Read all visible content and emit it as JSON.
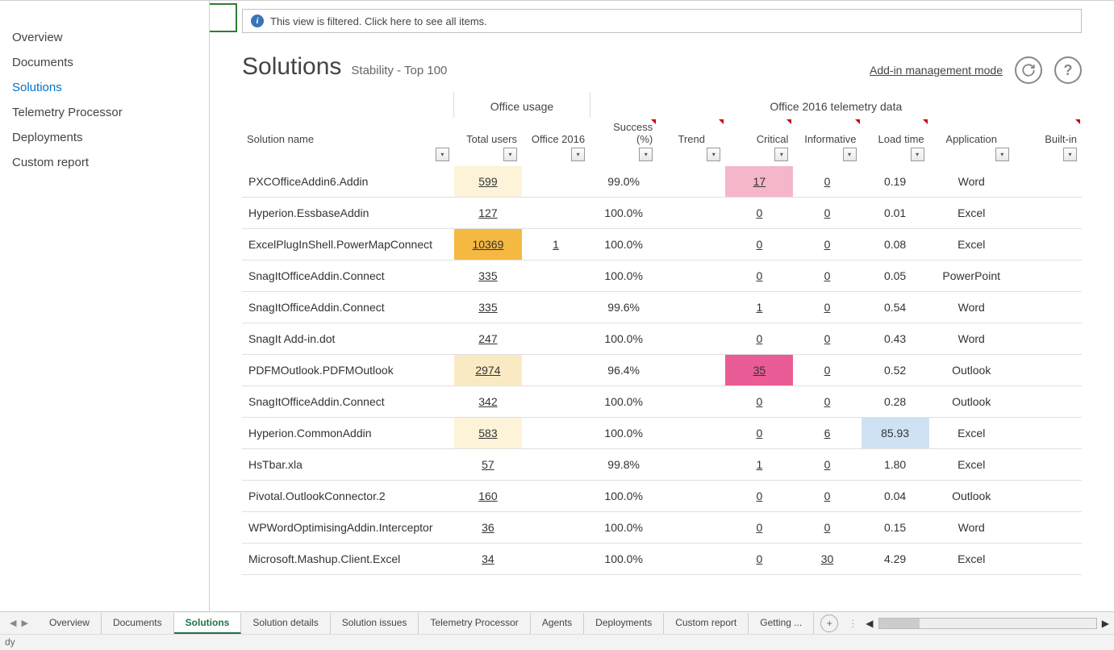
{
  "sidebar": {
    "items": [
      {
        "label": "Overview",
        "active": false
      },
      {
        "label": "Documents",
        "active": false
      },
      {
        "label": "Solutions",
        "active": true
      },
      {
        "label": "Telemetry Processor",
        "active": false
      },
      {
        "label": "Deployments",
        "active": false
      },
      {
        "label": "Custom report",
        "active": false
      }
    ]
  },
  "filter_notice": "This view is filtered. Click here to see all items.",
  "page": {
    "title": "Solutions",
    "subtitle": "Stability - Top 100",
    "mode_link": "Add-in management mode"
  },
  "table": {
    "group_headers": [
      "",
      "Office usage",
      "Office 2016 telemetry data"
    ],
    "columns": [
      {
        "label": "Solution name",
        "align": "left",
        "red": false
      },
      {
        "label": "Total users",
        "align": "right",
        "red": false
      },
      {
        "label": "Office 2016",
        "align": "right",
        "red": false
      },
      {
        "label": "Success (%)",
        "align": "right",
        "red": true
      },
      {
        "label": "Trend",
        "align": "center",
        "red": true
      },
      {
        "label": "Critical",
        "align": "right",
        "red": true
      },
      {
        "label": "Informative",
        "align": "right",
        "red": true
      },
      {
        "label": "Load time",
        "align": "right",
        "red": true
      },
      {
        "label": "Application",
        "align": "center",
        "red": false
      },
      {
        "label": "Built-in",
        "align": "right",
        "red": true
      }
    ],
    "rows": [
      {
        "name": "PXCOfficeAddin6.Addin",
        "total": "599",
        "total_hl": "hl-yellow-light",
        "o2016": "",
        "success": "99.0%",
        "trend": "",
        "critical": "17",
        "critical_hl": "hl-pink-light",
        "info": "0",
        "load": "0.19",
        "load_hl": "",
        "app": "Word"
      },
      {
        "name": "Hyperion.EssbaseAddin",
        "total": "127",
        "total_hl": "",
        "o2016": "",
        "success": "100.0%",
        "trend": "",
        "critical": "0",
        "critical_hl": "",
        "info": "0",
        "load": "0.01",
        "load_hl": "",
        "app": "Excel"
      },
      {
        "name": "ExcelPlugInShell.PowerMapConnect",
        "total": "10369",
        "total_hl": "hl-orange",
        "o2016": "1",
        "success": "100.0%",
        "trend": "",
        "critical": "0",
        "critical_hl": "",
        "info": "0",
        "load": "0.08",
        "load_hl": "",
        "app": "Excel"
      },
      {
        "name": "SnagItOfficeAddin.Connect",
        "total": "335",
        "total_hl": "",
        "o2016": "",
        "success": "100.0%",
        "trend": "",
        "critical": "0",
        "critical_hl": "",
        "info": "0",
        "load": "0.05",
        "load_hl": "",
        "app": "PowerPoint"
      },
      {
        "name": "SnagItOfficeAddin.Connect",
        "total": "335",
        "total_hl": "",
        "o2016": "",
        "success": "99.6%",
        "trend": "",
        "critical": "1",
        "critical_hl": "",
        "info": "0",
        "load": "0.54",
        "load_hl": "",
        "app": "Word"
      },
      {
        "name": "SnagIt Add-in.dot",
        "total": "247",
        "total_hl": "",
        "o2016": "",
        "success": "100.0%",
        "trend": "",
        "critical": "0",
        "critical_hl": "",
        "info": "0",
        "load": "0.43",
        "load_hl": "",
        "app": "Word"
      },
      {
        "name": "PDFMOutlook.PDFMOutlook",
        "total": "2974",
        "total_hl": "hl-cream",
        "o2016": "",
        "success": "96.4%",
        "trend": "",
        "critical": "35",
        "critical_hl": "hl-pink",
        "info": "0",
        "load": "0.52",
        "load_hl": "",
        "app": "Outlook"
      },
      {
        "name": "SnagItOfficeAddin.Connect",
        "total": "342",
        "total_hl": "",
        "o2016": "",
        "success": "100.0%",
        "trend": "",
        "critical": "0",
        "critical_hl": "",
        "info": "0",
        "load": "0.28",
        "load_hl": "",
        "app": "Outlook"
      },
      {
        "name": "Hyperion.CommonAddin",
        "total": "583",
        "total_hl": "hl-yellow-light",
        "o2016": "",
        "success": "100.0%",
        "trend": "",
        "critical": "0",
        "critical_hl": "",
        "info": "6",
        "load": "85.93",
        "load_hl": "hl-blue-light",
        "app": "Excel"
      },
      {
        "name": "HsTbar.xla",
        "total": "57",
        "total_hl": "",
        "o2016": "",
        "success": "99.8%",
        "trend": "",
        "critical": "1",
        "critical_hl": "",
        "info": "0",
        "load": "1.80",
        "load_hl": "",
        "app": "Excel"
      },
      {
        "name": "Pivotal.OutlookConnector.2",
        "total": "160",
        "total_hl": "",
        "o2016": "",
        "success": "100.0%",
        "trend": "",
        "critical": "0",
        "critical_hl": "",
        "info": "0",
        "load": "0.04",
        "load_hl": "",
        "app": "Outlook"
      },
      {
        "name": "WPWordOptimisingAddin.Interceptor",
        "total": "36",
        "total_hl": "",
        "o2016": "",
        "success": "100.0%",
        "trend": "",
        "critical": "0",
        "critical_hl": "",
        "info": "0",
        "load": "0.15",
        "load_hl": "",
        "app": "Word"
      },
      {
        "name": "Microsoft.Mashup.Client.Excel",
        "total": "34",
        "total_hl": "",
        "o2016": "",
        "success": "100.0%",
        "trend": "",
        "critical": "0",
        "critical_hl": "",
        "info": "30",
        "load": "4.29",
        "load_hl": "",
        "app": "Excel"
      }
    ]
  },
  "sheet_tabs": [
    {
      "label": "Overview",
      "active": false
    },
    {
      "label": "Documents",
      "active": false
    },
    {
      "label": "Solutions",
      "active": true
    },
    {
      "label": "Solution details",
      "active": false
    },
    {
      "label": "Solution issues",
      "active": false
    },
    {
      "label": "Telemetry Processor",
      "active": false
    },
    {
      "label": "Agents",
      "active": false
    },
    {
      "label": "Deployments",
      "active": false
    },
    {
      "label": "Custom report",
      "active": false
    },
    {
      "label": "Getting ...",
      "active": false
    }
  ],
  "status_text": "dy",
  "colors": {
    "active_sidebar": "#0072c6",
    "tab_active": "#217346",
    "hl_yellow_light": "#fdf3d9",
    "hl_orange": "#f5b942",
    "hl_cream": "#faeac3",
    "hl_pink_light": "#f4b6c8",
    "hl_pink": "#ea5c96",
    "hl_blue_light": "#cfe2f3"
  }
}
